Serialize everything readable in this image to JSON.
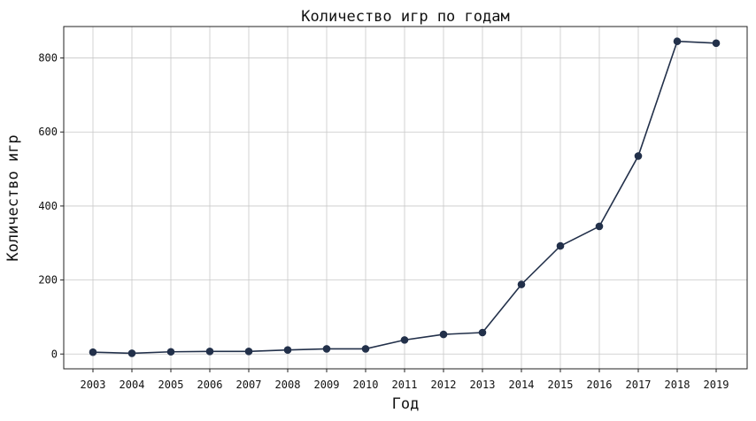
{
  "chart_data": {
    "type": "line",
    "title": "Количество игр по годам",
    "xlabel": "Год",
    "ylabel": "Количество игр",
    "grid": true,
    "ylim": [
      -40,
      885
    ],
    "yticks": [
      0,
      200,
      400,
      600,
      800
    ],
    "color": "#22304a",
    "x": [
      "2003",
      "2004",
      "2005",
      "2006",
      "2007",
      "2008",
      "2009",
      "2010",
      "2011",
      "2012",
      "2013",
      "2014",
      "2015",
      "2016",
      "2017",
      "2018",
      "2019"
    ],
    "series": [
      {
        "values": [
          5,
          2,
          6,
          7,
          7,
          11,
          14,
          14,
          38,
          53,
          58,
          188,
          292,
          345,
          535,
          845,
          840
        ]
      }
    ]
  }
}
